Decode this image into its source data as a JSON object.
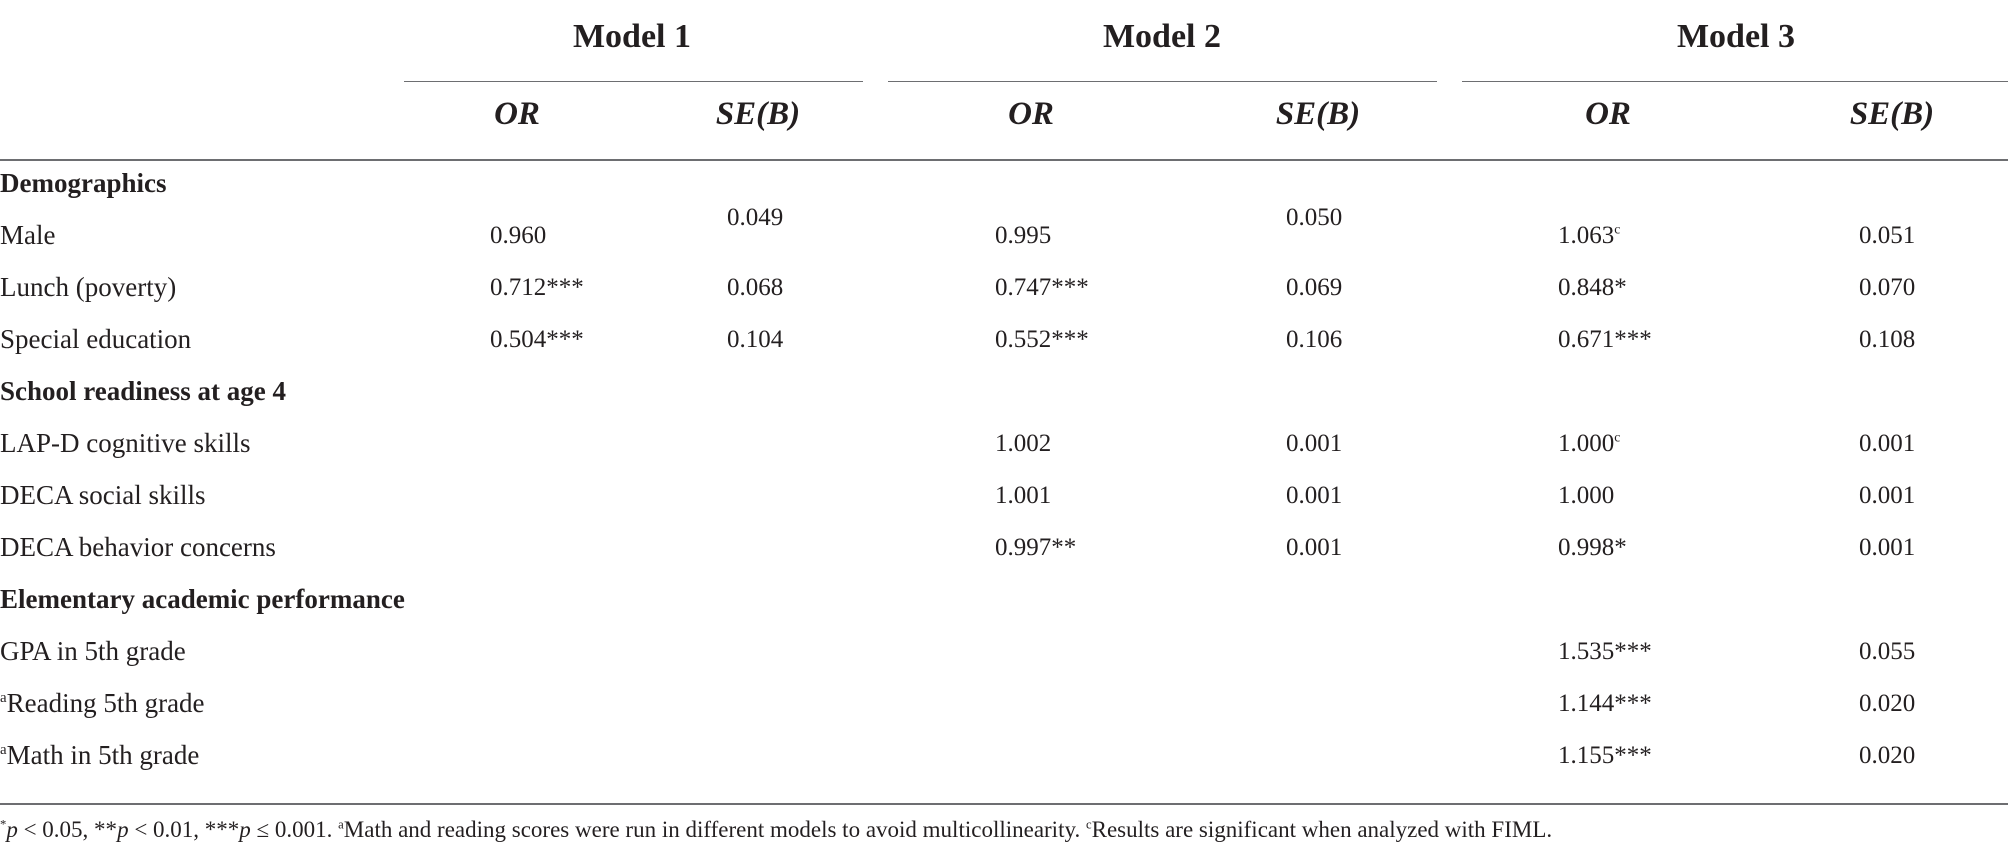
{
  "models": [
    {
      "name": "Model 1",
      "cols": [
        "OR",
        "SE(B)"
      ]
    },
    {
      "name": "Model 2",
      "cols": [
        "OR",
        "SE(B)"
      ]
    },
    {
      "name": "Model 3",
      "cols": [
        "OR",
        "SE(B)"
      ]
    }
  ],
  "sections": [
    {
      "title": "Demographics"
    },
    {
      "title": "School readiness at age 4"
    },
    {
      "title": "Elementary academic performance"
    }
  ],
  "rows": [
    {
      "label": "Male",
      "prefix": "",
      "m1_or": "0.960",
      "m1_se": "0.049",
      "m2_or": "0.995",
      "m2_se": "0.050",
      "m3_or": "1.063",
      "m3_or_sup": "c",
      "m3_se": "0.051"
    },
    {
      "label": "Lunch (poverty)",
      "prefix": "",
      "m1_or": "0.712***",
      "m1_se": "0.068",
      "m2_or": "0.747***",
      "m2_se": "0.069",
      "m3_or": "0.848*",
      "m3_or_sup": "",
      "m3_se": "0.070"
    },
    {
      "label": "Special education",
      "prefix": "",
      "m1_or": "0.504***",
      "m1_se": "0.104",
      "m2_or": "0.552***",
      "m2_se": "0.106",
      "m3_or": "0.671***",
      "m3_or_sup": "",
      "m3_se": "0.108"
    },
    {
      "label": "LAP-D cognitive skills",
      "prefix": "",
      "m2_or": "1.002",
      "m2_se": "0.001",
      "m3_or": "1.000",
      "m3_or_sup": "c",
      "m3_se": "0.001"
    },
    {
      "label": "DECA social skills",
      "prefix": "",
      "m2_or": "1.001",
      "m2_se": "0.001",
      "m3_or": "1.000",
      "m3_or_sup": "",
      "m3_se": "0.001"
    },
    {
      "label": "DECA behavior concerns",
      "prefix": "",
      "m2_or": "0.997**",
      "m2_se": "0.001",
      "m3_or": "0.998*",
      "m3_or_sup": "",
      "m3_se": "0.001"
    },
    {
      "label": "GPA in 5th grade",
      "prefix": "",
      "m3_or": "1.535***",
      "m3_or_sup": "",
      "m3_se": "0.055"
    },
    {
      "label": "Reading 5th grade",
      "prefix": "a",
      "m3_or": "1.144***",
      "m3_or_sup": "",
      "m3_se": "0.020"
    },
    {
      "label": "Math in 5th grade",
      "prefix": "a",
      "m3_or": "1.155***",
      "m3_or_sup": "",
      "m3_se": "0.020"
    }
  ],
  "footnote": {
    "p1": "*",
    "p1v": "p",
    "p1t": " < 0.05, **",
    "p2v": "p",
    "p2t": " < 0.01, ***",
    "p3v": "p",
    "p3t": " ≤ 0.001. ",
    "a_mark": "a",
    "a_text": "Math and reading scores were run in different models to avoid multicollinearity. ",
    "c_mark": "c",
    "c_text": "Results are significant when analyzed with FIML."
  }
}
